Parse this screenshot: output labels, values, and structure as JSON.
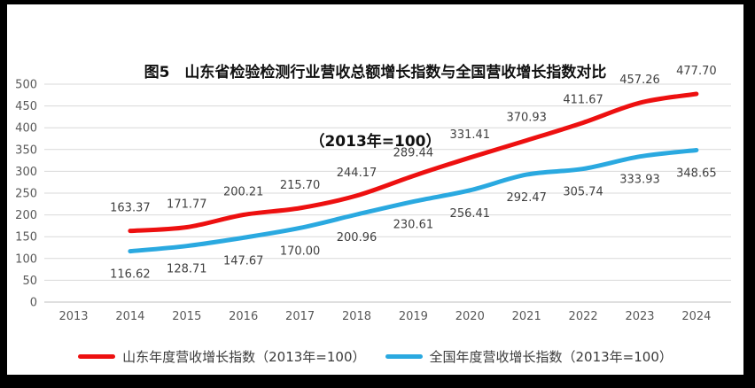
{
  "chart_data": {
    "type": "line",
    "title_line1": "图5　山东省检验检测行业营收总额增长指数与全国营收增长指数对比",
    "title_line2": "（2013年=100）",
    "categories": [
      "2013",
      "2014",
      "2015",
      "2016",
      "2017",
      "2018",
      "2019",
      "2020",
      "2021",
      "2022",
      "2023",
      "2024"
    ],
    "series": [
      {
        "name": "山东年度营收增长指数（2013年=100）",
        "color": "#ed1010",
        "label_side": "above",
        "values": [
          null,
          163.37,
          171.77,
          200.21,
          215.7,
          244.17,
          289.44,
          331.41,
          370.93,
          411.67,
          457.26,
          477.7
        ]
      },
      {
        "name": "全国年度营收增长指数（2013年=100）",
        "color": "#2aa9e0",
        "label_side": "below",
        "values": [
          null,
          116.62,
          128.71,
          147.67,
          170.0,
          200.96,
          230.61,
          256.41,
          292.47,
          305.74,
          333.93,
          348.65
        ]
      }
    ],
    "ylim": [
      0,
      500
    ],
    "yticks": [
      0,
      50,
      100,
      150,
      200,
      250,
      300,
      350,
      400,
      450,
      500
    ],
    "grid": true,
    "legend_position": "bottom",
    "data_labels": true,
    "data_labels_decimals": 2,
    "colors": {
      "gridline": "#d9d9d9",
      "axis_line": "#bfbfbf",
      "tick_label": "#595959",
      "data_label": "#404040",
      "title": "#111111",
      "frame": "#000000",
      "background": "#ffffff"
    }
  }
}
